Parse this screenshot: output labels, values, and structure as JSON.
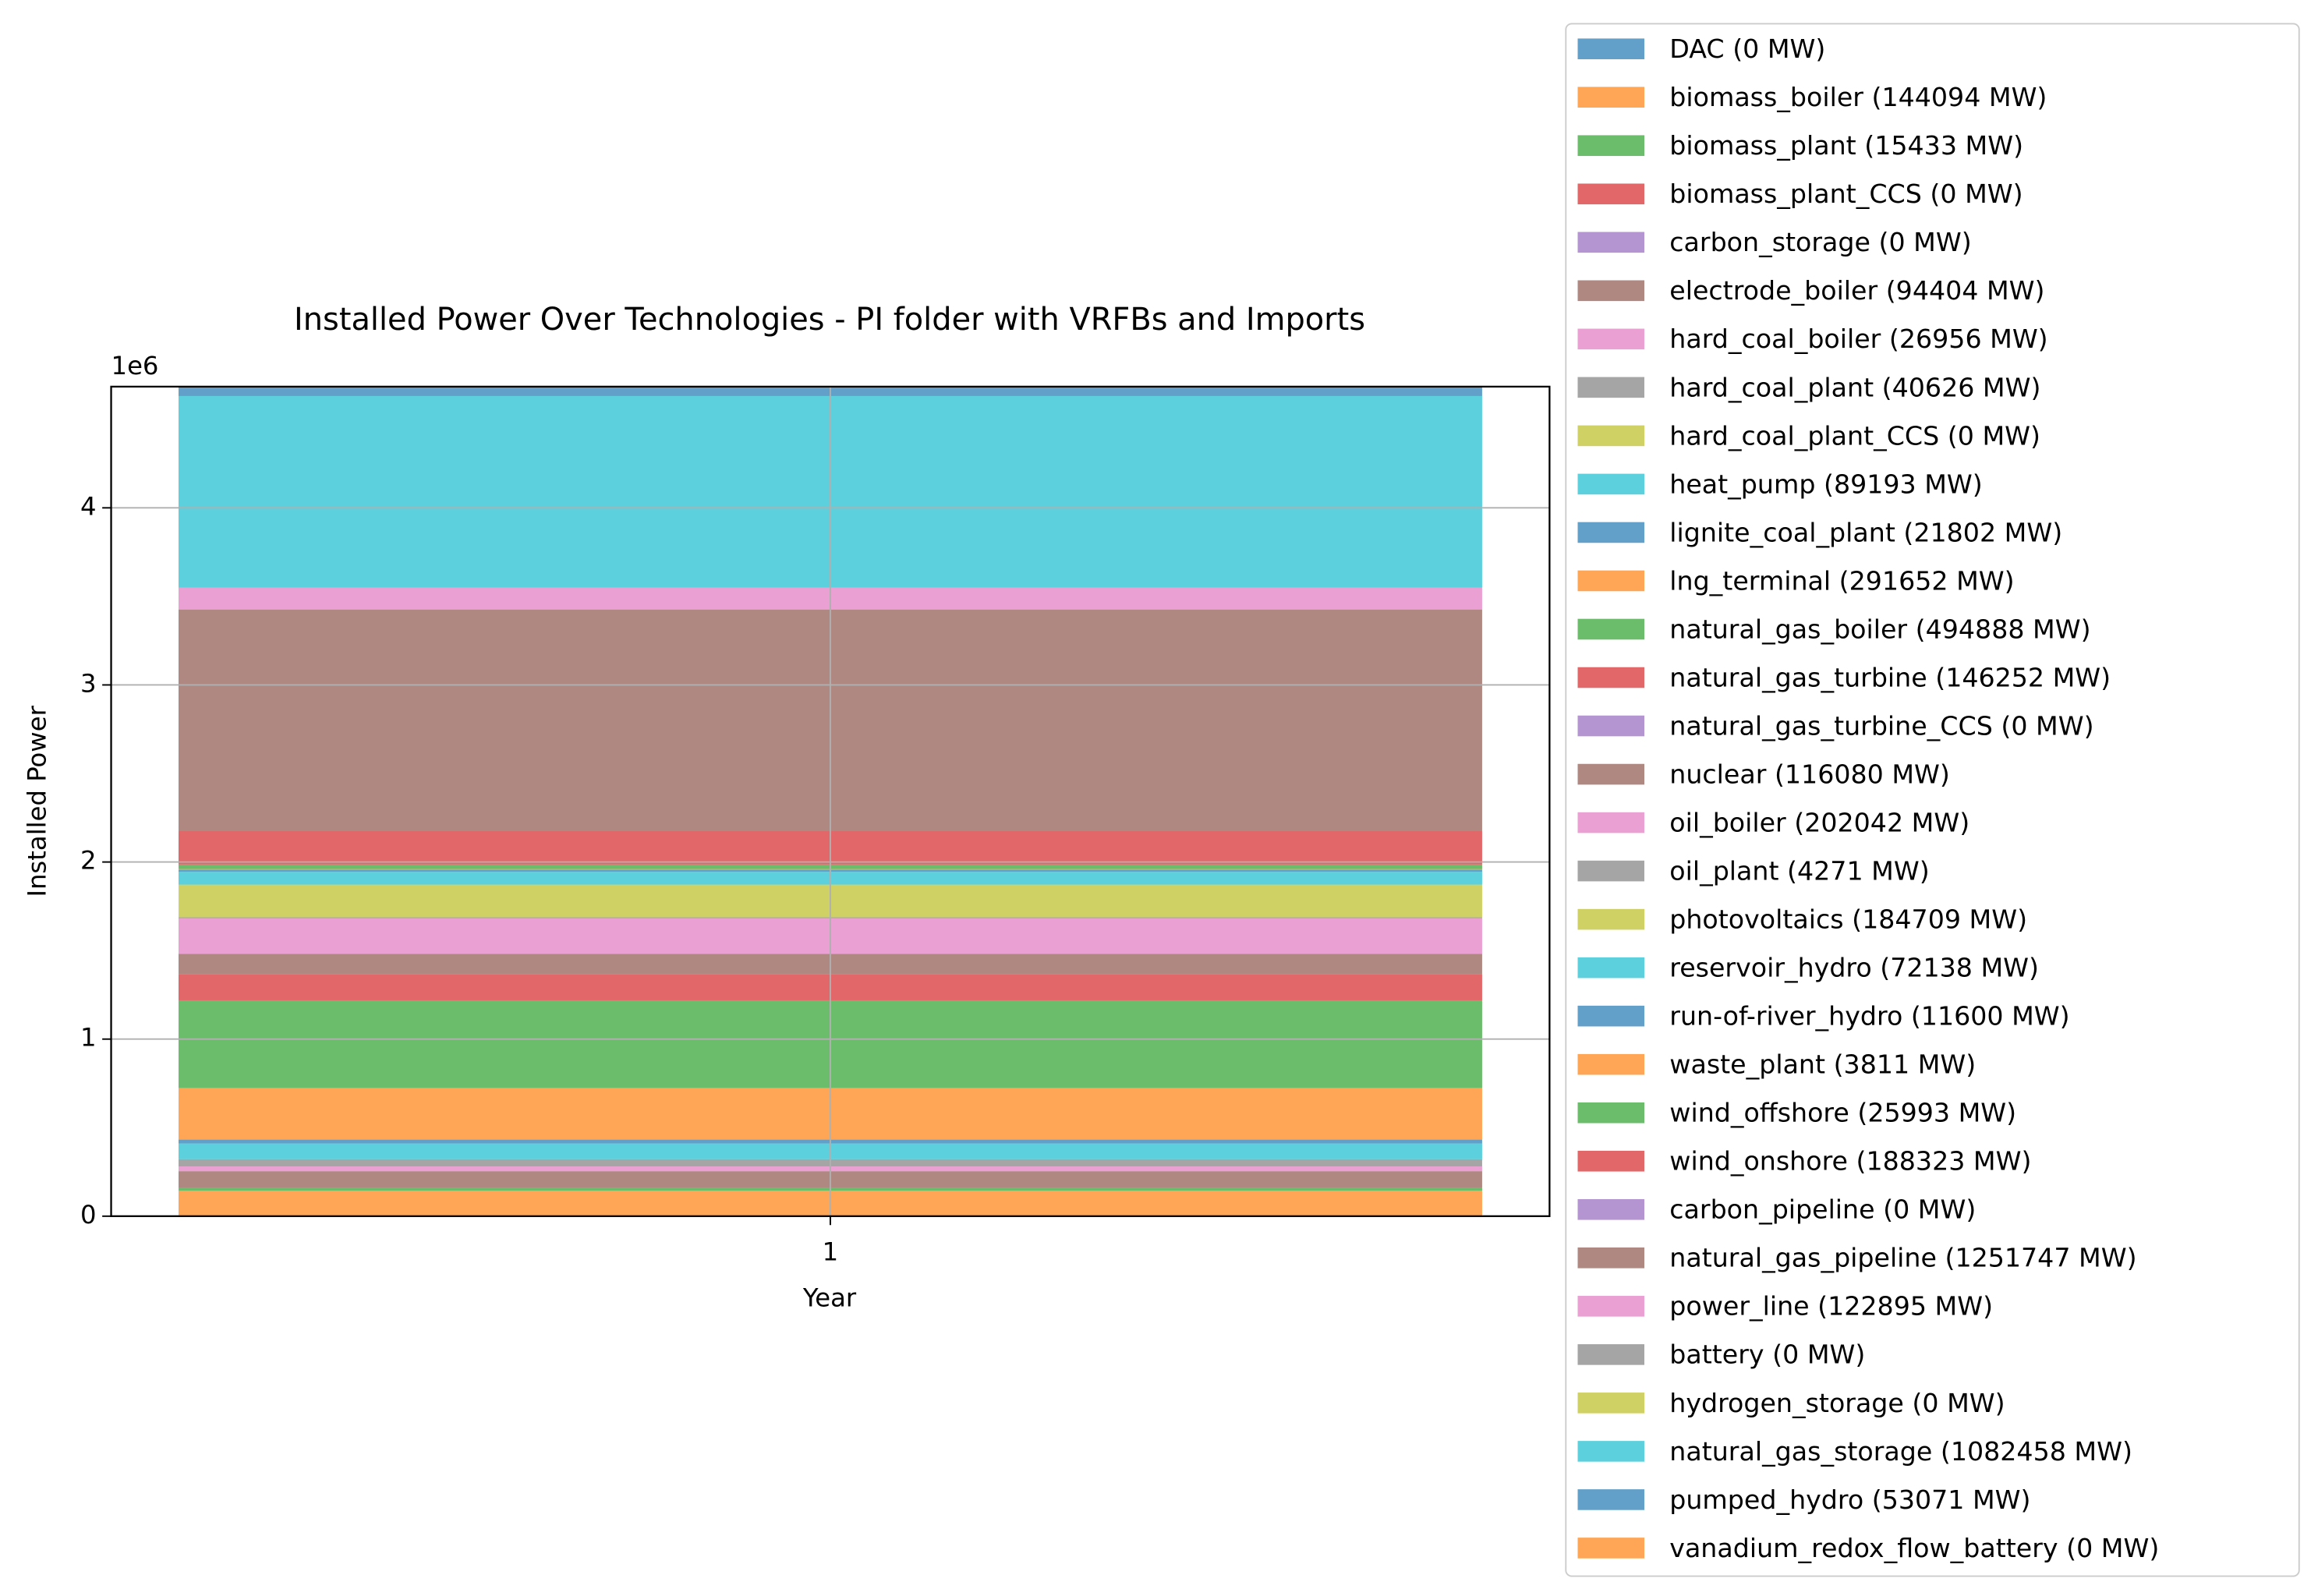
{
  "chart_data": {
    "type": "bar",
    "stacked": true,
    "title": "Installed Power Over Technologies - PI folder with VRFBs and Imports",
    "x_label": "Year",
    "y_label": "Installed Power",
    "y_offset_label": "1e6",
    "categories": [
      "1"
    ],
    "ylim": [
      0,
      4684438
    ],
    "yticks": [
      0,
      {
        "value": 1000000,
        "label": "1"
      },
      {
        "value": 2000000,
        "label": "2"
      },
      {
        "value": 3000000,
        "label": "3"
      },
      {
        "value": 4000000,
        "label": "4"
      }
    ],
    "grid": true,
    "alpha": 0.7,
    "legend": "outside right",
    "series": [
      {
        "name": "DAC (0 MW)",
        "color": "#1f77b4",
        "values": [
          0
        ]
      },
      {
        "name": "biomass_boiler (144094 MW)",
        "color": "#ff7f0e",
        "values": [
          144094
        ]
      },
      {
        "name": "biomass_plant (15433 MW)",
        "color": "#2ca02c",
        "values": [
          15433
        ]
      },
      {
        "name": "biomass_plant_CCS (0 MW)",
        "color": "#d62728",
        "values": [
          0
        ]
      },
      {
        "name": "carbon_storage (0 MW)",
        "color": "#9467bd",
        "values": [
          0
        ]
      },
      {
        "name": "electrode_boiler (94404 MW)",
        "color": "#8c564b",
        "values": [
          94404
        ]
      },
      {
        "name": "hard_coal_boiler (26956 MW)",
        "color": "#e377c2",
        "values": [
          26956
        ]
      },
      {
        "name": "hard_coal_plant (40626 MW)",
        "color": "#7f7f7f",
        "values": [
          40626
        ]
      },
      {
        "name": "hard_coal_plant_CCS (0 MW)",
        "color": "#bcbd22",
        "values": [
          0
        ]
      },
      {
        "name": "heat_pump (89193 MW)",
        "color": "#17becf",
        "values": [
          89193
        ]
      },
      {
        "name": "lignite_coal_plant (21802 MW)",
        "color": "#1f77b4",
        "values": [
          21802
        ]
      },
      {
        "name": "lng_terminal (291652 MW)",
        "color": "#ff7f0e",
        "values": [
          291652
        ]
      },
      {
        "name": "natural_gas_boiler (494888 MW)",
        "color": "#2ca02c",
        "values": [
          494888
        ]
      },
      {
        "name": "natural_gas_turbine (146252 MW)",
        "color": "#d62728",
        "values": [
          146252
        ]
      },
      {
        "name": "natural_gas_turbine_CCS (0 MW)",
        "color": "#9467bd",
        "values": [
          0
        ]
      },
      {
        "name": "nuclear (116080 MW)",
        "color": "#8c564b",
        "values": [
          116080
        ]
      },
      {
        "name": "oil_boiler (202042 MW)",
        "color": "#e377c2",
        "values": [
          202042
        ]
      },
      {
        "name": "oil_plant (4271 MW)",
        "color": "#7f7f7f",
        "values": [
          4271
        ]
      },
      {
        "name": "photovoltaics (184709 MW)",
        "color": "#bcbd22",
        "values": [
          184709
        ]
      },
      {
        "name": "reservoir_hydro (72138 MW)",
        "color": "#17becf",
        "values": [
          72138
        ]
      },
      {
        "name": "run-of-river_hydro (11600 MW)",
        "color": "#1f77b4",
        "values": [
          11600
        ]
      },
      {
        "name": "waste_plant (3811 MW)",
        "color": "#ff7f0e",
        "values": [
          3811
        ]
      },
      {
        "name": "wind_offshore (25993 MW)",
        "color": "#2ca02c",
        "values": [
          25993
        ]
      },
      {
        "name": "wind_onshore (188323 MW)",
        "color": "#d62728",
        "values": [
          188323
        ]
      },
      {
        "name": "carbon_pipeline (0 MW)",
        "color": "#9467bd",
        "values": [
          0
        ]
      },
      {
        "name": "natural_gas_pipeline (1251747 MW)",
        "color": "#8c564b",
        "values": [
          1251747
        ]
      },
      {
        "name": "power_line (122895 MW)",
        "color": "#e377c2",
        "values": [
          122895
        ]
      },
      {
        "name": "battery (0 MW)",
        "color": "#7f7f7f",
        "values": [
          0
        ]
      },
      {
        "name": "hydrogen_storage (0 MW)",
        "color": "#bcbd22",
        "values": [
          0
        ]
      },
      {
        "name": "natural_gas_storage (1082458 MW)",
        "color": "#17becf",
        "values": [
          1082458
        ]
      },
      {
        "name": "pumped_hydro (53071 MW)",
        "color": "#1f77b4",
        "values": [
          53071
        ]
      },
      {
        "name": "vanadium_redox_flow_battery (0 MW)",
        "color": "#ff7f0e",
        "values": [
          0
        ]
      }
    ]
  }
}
